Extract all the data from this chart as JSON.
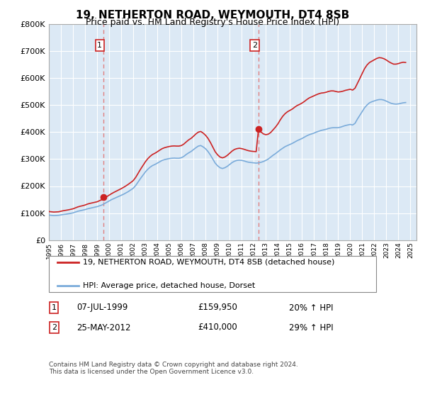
{
  "title": "19, NETHERTON ROAD, WEYMOUTH, DT4 8SB",
  "subtitle": "Price paid vs. HM Land Registry's House Price Index (HPI)",
  "legend_line1": "19, NETHERTON ROAD, WEYMOUTH, DT4 8SB (detached house)",
  "legend_line2": "HPI: Average price, detached house, Dorset",
  "annotation1_label": "1",
  "annotation1_date": "07-JUL-1999",
  "annotation1_price": "£159,950",
  "annotation1_hpi": "20% ↑ HPI",
  "annotation1_year": 1999.52,
  "annotation1_value": 159950,
  "annotation2_label": "2",
  "annotation2_date": "25-MAY-2012",
  "annotation2_price": "£410,000",
  "annotation2_hpi": "29% ↑ HPI",
  "annotation2_year": 2012.39,
  "annotation2_value": 410000,
  "ylim": [
    0,
    800000
  ],
  "xlim_start": 1995.0,
  "xlim_end": 2025.5,
  "plot_bg_color": "#dce9f5",
  "red_line_color": "#cc2222",
  "blue_line_color": "#7aabda",
  "vline_color": "#e08080",
  "footer_text": "Contains HM Land Registry data © Crown copyright and database right 2024.\nThis data is licensed under the Open Government Licence v3.0.",
  "hpi_data": [
    [
      1995.0,
      93000
    ],
    [
      1995.2,
      92000
    ],
    [
      1995.4,
      91000
    ],
    [
      1995.6,
      91500
    ],
    [
      1995.8,
      92000
    ],
    [
      1996.0,
      93500
    ],
    [
      1996.2,
      95000
    ],
    [
      1996.4,
      96000
    ],
    [
      1996.6,
      97500
    ],
    [
      1996.8,
      99000
    ],
    [
      1997.0,
      101000
    ],
    [
      1997.2,
      104000
    ],
    [
      1997.4,
      107000
    ],
    [
      1997.6,
      109000
    ],
    [
      1997.8,
      111000
    ],
    [
      1998.0,
      113000
    ],
    [
      1998.2,
      116000
    ],
    [
      1998.4,
      118000
    ],
    [
      1998.6,
      120000
    ],
    [
      1998.8,
      122000
    ],
    [
      1999.0,
      124000
    ],
    [
      1999.2,
      127000
    ],
    [
      1999.4,
      130000
    ],
    [
      1999.6,
      135000
    ],
    [
      1999.8,
      140000
    ],
    [
      2000.0,
      145000
    ],
    [
      2000.2,
      150000
    ],
    [
      2000.4,
      154000
    ],
    [
      2000.6,
      158000
    ],
    [
      2000.8,
      162000
    ],
    [
      2001.0,
      166000
    ],
    [
      2001.2,
      170000
    ],
    [
      2001.4,
      175000
    ],
    [
      2001.6,
      180000
    ],
    [
      2001.8,
      186000
    ],
    [
      2002.0,
      192000
    ],
    [
      2002.2,
      202000
    ],
    [
      2002.4,
      215000
    ],
    [
      2002.6,
      228000
    ],
    [
      2002.8,
      240000
    ],
    [
      2003.0,
      252000
    ],
    [
      2003.2,
      262000
    ],
    [
      2003.4,
      270000
    ],
    [
      2003.6,
      276000
    ],
    [
      2003.8,
      280000
    ],
    [
      2004.0,
      285000
    ],
    [
      2004.2,
      290000
    ],
    [
      2004.4,
      295000
    ],
    [
      2004.6,
      298000
    ],
    [
      2004.8,
      300000
    ],
    [
      2005.0,
      302000
    ],
    [
      2005.2,
      303000
    ],
    [
      2005.4,
      303500
    ],
    [
      2005.6,
      303000
    ],
    [
      2005.8,
      303000
    ],
    [
      2006.0,
      305000
    ],
    [
      2006.2,
      310000
    ],
    [
      2006.4,
      317000
    ],
    [
      2006.6,
      323000
    ],
    [
      2006.8,
      328000
    ],
    [
      2007.0,
      335000
    ],
    [
      2007.2,
      342000
    ],
    [
      2007.4,
      348000
    ],
    [
      2007.6,
      350000
    ],
    [
      2007.8,
      345000
    ],
    [
      2008.0,
      338000
    ],
    [
      2008.2,
      328000
    ],
    [
      2008.4,
      315000
    ],
    [
      2008.6,
      300000
    ],
    [
      2008.8,
      285000
    ],
    [
      2009.0,
      275000
    ],
    [
      2009.2,
      268000
    ],
    [
      2009.4,
      265000
    ],
    [
      2009.6,
      268000
    ],
    [
      2009.8,
      273000
    ],
    [
      2010.0,
      280000
    ],
    [
      2010.2,
      287000
    ],
    [
      2010.4,
      292000
    ],
    [
      2010.6,
      295000
    ],
    [
      2010.8,
      296000
    ],
    [
      2011.0,
      295000
    ],
    [
      2011.2,
      293000
    ],
    [
      2011.4,
      290000
    ],
    [
      2011.6,
      288000
    ],
    [
      2011.8,
      287000
    ],
    [
      2012.0,
      286000
    ],
    [
      2012.2,
      285000
    ],
    [
      2012.4,
      286000
    ],
    [
      2012.6,
      288000
    ],
    [
      2012.8,
      291000
    ],
    [
      2013.0,
      295000
    ],
    [
      2013.2,
      300000
    ],
    [
      2013.4,
      307000
    ],
    [
      2013.6,
      314000
    ],
    [
      2013.8,
      320000
    ],
    [
      2014.0,
      327000
    ],
    [
      2014.2,
      334000
    ],
    [
      2014.4,
      340000
    ],
    [
      2014.6,
      346000
    ],
    [
      2014.8,
      350000
    ],
    [
      2015.0,
      354000
    ],
    [
      2015.2,
      358000
    ],
    [
      2015.4,
      363000
    ],
    [
      2015.6,
      368000
    ],
    [
      2015.8,
      372000
    ],
    [
      2016.0,
      376000
    ],
    [
      2016.2,
      381000
    ],
    [
      2016.4,
      386000
    ],
    [
      2016.6,
      390000
    ],
    [
      2016.8,
      393000
    ],
    [
      2017.0,
      396000
    ],
    [
      2017.2,
      400000
    ],
    [
      2017.4,
      403000
    ],
    [
      2017.6,
      406000
    ],
    [
      2017.8,
      408000
    ],
    [
      2018.0,
      410000
    ],
    [
      2018.2,
      413000
    ],
    [
      2018.4,
      415000
    ],
    [
      2018.6,
      416000
    ],
    [
      2018.8,
      416000
    ],
    [
      2019.0,
      416000
    ],
    [
      2019.2,
      418000
    ],
    [
      2019.4,
      421000
    ],
    [
      2019.6,
      424000
    ],
    [
      2019.8,
      426000
    ],
    [
      2020.0,
      428000
    ],
    [
      2020.2,
      426000
    ],
    [
      2020.4,
      432000
    ],
    [
      2020.6,
      448000
    ],
    [
      2020.8,
      462000
    ],
    [
      2021.0,
      476000
    ],
    [
      2021.2,
      490000
    ],
    [
      2021.4,
      500000
    ],
    [
      2021.6,
      508000
    ],
    [
      2021.8,
      512000
    ],
    [
      2022.0,
      515000
    ],
    [
      2022.2,
      518000
    ],
    [
      2022.4,
      520000
    ],
    [
      2022.6,
      520000
    ],
    [
      2022.8,
      518000
    ],
    [
      2023.0,
      514000
    ],
    [
      2023.2,
      510000
    ],
    [
      2023.4,
      506000
    ],
    [
      2023.6,
      504000
    ],
    [
      2023.8,
      503000
    ],
    [
      2024.0,
      504000
    ],
    [
      2024.2,
      506000
    ],
    [
      2024.4,
      508000
    ],
    [
      2024.6,
      509000
    ]
  ],
  "red_data": [
    [
      1995.0,
      106000
    ],
    [
      1995.2,
      105000
    ],
    [
      1995.4,
      104000
    ],
    [
      1995.6,
      104500
    ],
    [
      1995.8,
      105000
    ],
    [
      1996.0,
      107000
    ],
    [
      1996.2,
      109000
    ],
    [
      1996.4,
      110500
    ],
    [
      1996.6,
      112000
    ],
    [
      1996.8,
      114000
    ],
    [
      1997.0,
      116000
    ],
    [
      1997.2,
      119500
    ],
    [
      1997.4,
      123000
    ],
    [
      1997.6,
      125500
    ],
    [
      1997.8,
      127500
    ],
    [
      1998.0,
      130000
    ],
    [
      1998.2,
      133500
    ],
    [
      1998.4,
      136000
    ],
    [
      1998.6,
      138000
    ],
    [
      1998.8,
      140000
    ],
    [
      1999.0,
      142000
    ],
    [
      1999.2,
      146000
    ],
    [
      1999.4,
      150000
    ],
    [
      1999.52,
      159950
    ],
    [
      1999.6,
      156000
    ],
    [
      1999.8,
      161000
    ],
    [
      2000.0,
      166500
    ],
    [
      2000.2,
      172000
    ],
    [
      2000.4,
      177000
    ],
    [
      2000.6,
      181500
    ],
    [
      2000.8,
      186000
    ],
    [
      2001.0,
      190500
    ],
    [
      2001.2,
      195500
    ],
    [
      2001.4,
      201000
    ],
    [
      2001.6,
      207000
    ],
    [
      2001.8,
      213500
    ],
    [
      2002.0,
      220500
    ],
    [
      2002.2,
      232000
    ],
    [
      2002.4,
      247000
    ],
    [
      2002.6,
      262000
    ],
    [
      2002.8,
      276000
    ],
    [
      2003.0,
      289500
    ],
    [
      2003.2,
      301000
    ],
    [
      2003.4,
      310000
    ],
    [
      2003.6,
      317000
    ],
    [
      2003.8,
      321500
    ],
    [
      2004.0,
      327000
    ],
    [
      2004.2,
      333000
    ],
    [
      2004.4,
      338500
    ],
    [
      2004.6,
      342000
    ],
    [
      2004.8,
      344500
    ],
    [
      2005.0,
      346500
    ],
    [
      2005.2,
      348000
    ],
    [
      2005.4,
      348500
    ],
    [
      2005.6,
      348000
    ],
    [
      2005.8,
      348000
    ],
    [
      2006.0,
      350000
    ],
    [
      2006.2,
      355500
    ],
    [
      2006.4,
      363500
    ],
    [
      2006.6,
      371000
    ],
    [
      2006.8,
      376500
    ],
    [
      2007.0,
      384500
    ],
    [
      2007.2,
      393000
    ],
    [
      2007.4,
      399500
    ],
    [
      2007.6,
      402000
    ],
    [
      2007.8,
      396000
    ],
    [
      2008.0,
      388000
    ],
    [
      2008.2,
      376500
    ],
    [
      2008.4,
      361500
    ],
    [
      2008.6,
      344500
    ],
    [
      2008.8,
      327000
    ],
    [
      2009.0,
      315500
    ],
    [
      2009.2,
      307500
    ],
    [
      2009.4,
      304500
    ],
    [
      2009.6,
      307500
    ],
    [
      2009.8,
      313500
    ],
    [
      2010.0,
      321500
    ],
    [
      2010.2,
      329500
    ],
    [
      2010.4,
      335500
    ],
    [
      2010.6,
      338500
    ],
    [
      2010.8,
      340000
    ],
    [
      2011.0,
      338500
    ],
    [
      2011.2,
      336000
    ],
    [
      2011.4,
      333000
    ],
    [
      2011.6,
      330500
    ],
    [
      2011.8,
      329000
    ],
    [
      2012.0,
      328000
    ],
    [
      2012.2,
      327500
    ],
    [
      2012.39,
      410000
    ],
    [
      2012.4,
      408000
    ],
    [
      2012.6,
      400000
    ],
    [
      2012.8,
      393000
    ],
    [
      2013.0,
      390000
    ],
    [
      2013.2,
      392000
    ],
    [
      2013.4,
      398000
    ],
    [
      2013.6,
      408000
    ],
    [
      2013.8,
      418000
    ],
    [
      2014.0,
      430000
    ],
    [
      2014.2,
      445000
    ],
    [
      2014.4,
      458000
    ],
    [
      2014.6,
      468000
    ],
    [
      2014.8,
      475000
    ],
    [
      2015.0,
      480000
    ],
    [
      2015.2,
      485000
    ],
    [
      2015.4,
      492000
    ],
    [
      2015.6,
      498000
    ],
    [
      2015.8,
      502000
    ],
    [
      2016.0,
      507000
    ],
    [
      2016.2,
      513000
    ],
    [
      2016.4,
      520000
    ],
    [
      2016.6,
      526000
    ],
    [
      2016.8,
      530000
    ],
    [
      2017.0,
      534000
    ],
    [
      2017.2,
      538000
    ],
    [
      2017.4,
      541500
    ],
    [
      2017.6,
      544000
    ],
    [
      2017.8,
      545000
    ],
    [
      2018.0,
      547000
    ],
    [
      2018.2,
      550000
    ],
    [
      2018.4,
      552000
    ],
    [
      2018.6,
      552000
    ],
    [
      2018.8,
      550000
    ],
    [
      2019.0,
      548000
    ],
    [
      2019.2,
      549000
    ],
    [
      2019.4,
      551000
    ],
    [
      2019.6,
      554000
    ],
    [
      2019.8,
      556000
    ],
    [
      2020.0,
      558000
    ],
    [
      2020.2,
      555000
    ],
    [
      2020.4,
      562000
    ],
    [
      2020.6,
      580000
    ],
    [
      2020.8,
      598000
    ],
    [
      2021.0,
      617000
    ],
    [
      2021.2,
      635000
    ],
    [
      2021.4,
      648000
    ],
    [
      2021.6,
      657000
    ],
    [
      2021.8,
      662000
    ],
    [
      2022.0,
      667000
    ],
    [
      2022.2,
      672000
    ],
    [
      2022.4,
      675000
    ],
    [
      2022.6,
      674000
    ],
    [
      2022.8,
      671000
    ],
    [
      2023.0,
      666000
    ],
    [
      2023.2,
      660000
    ],
    [
      2023.4,
      655000
    ],
    [
      2023.6,
      651000
    ],
    [
      2023.8,
      651000
    ],
    [
      2024.0,
      653000
    ],
    [
      2024.2,
      656000
    ],
    [
      2024.4,
      658000
    ],
    [
      2024.6,
      657000
    ]
  ]
}
